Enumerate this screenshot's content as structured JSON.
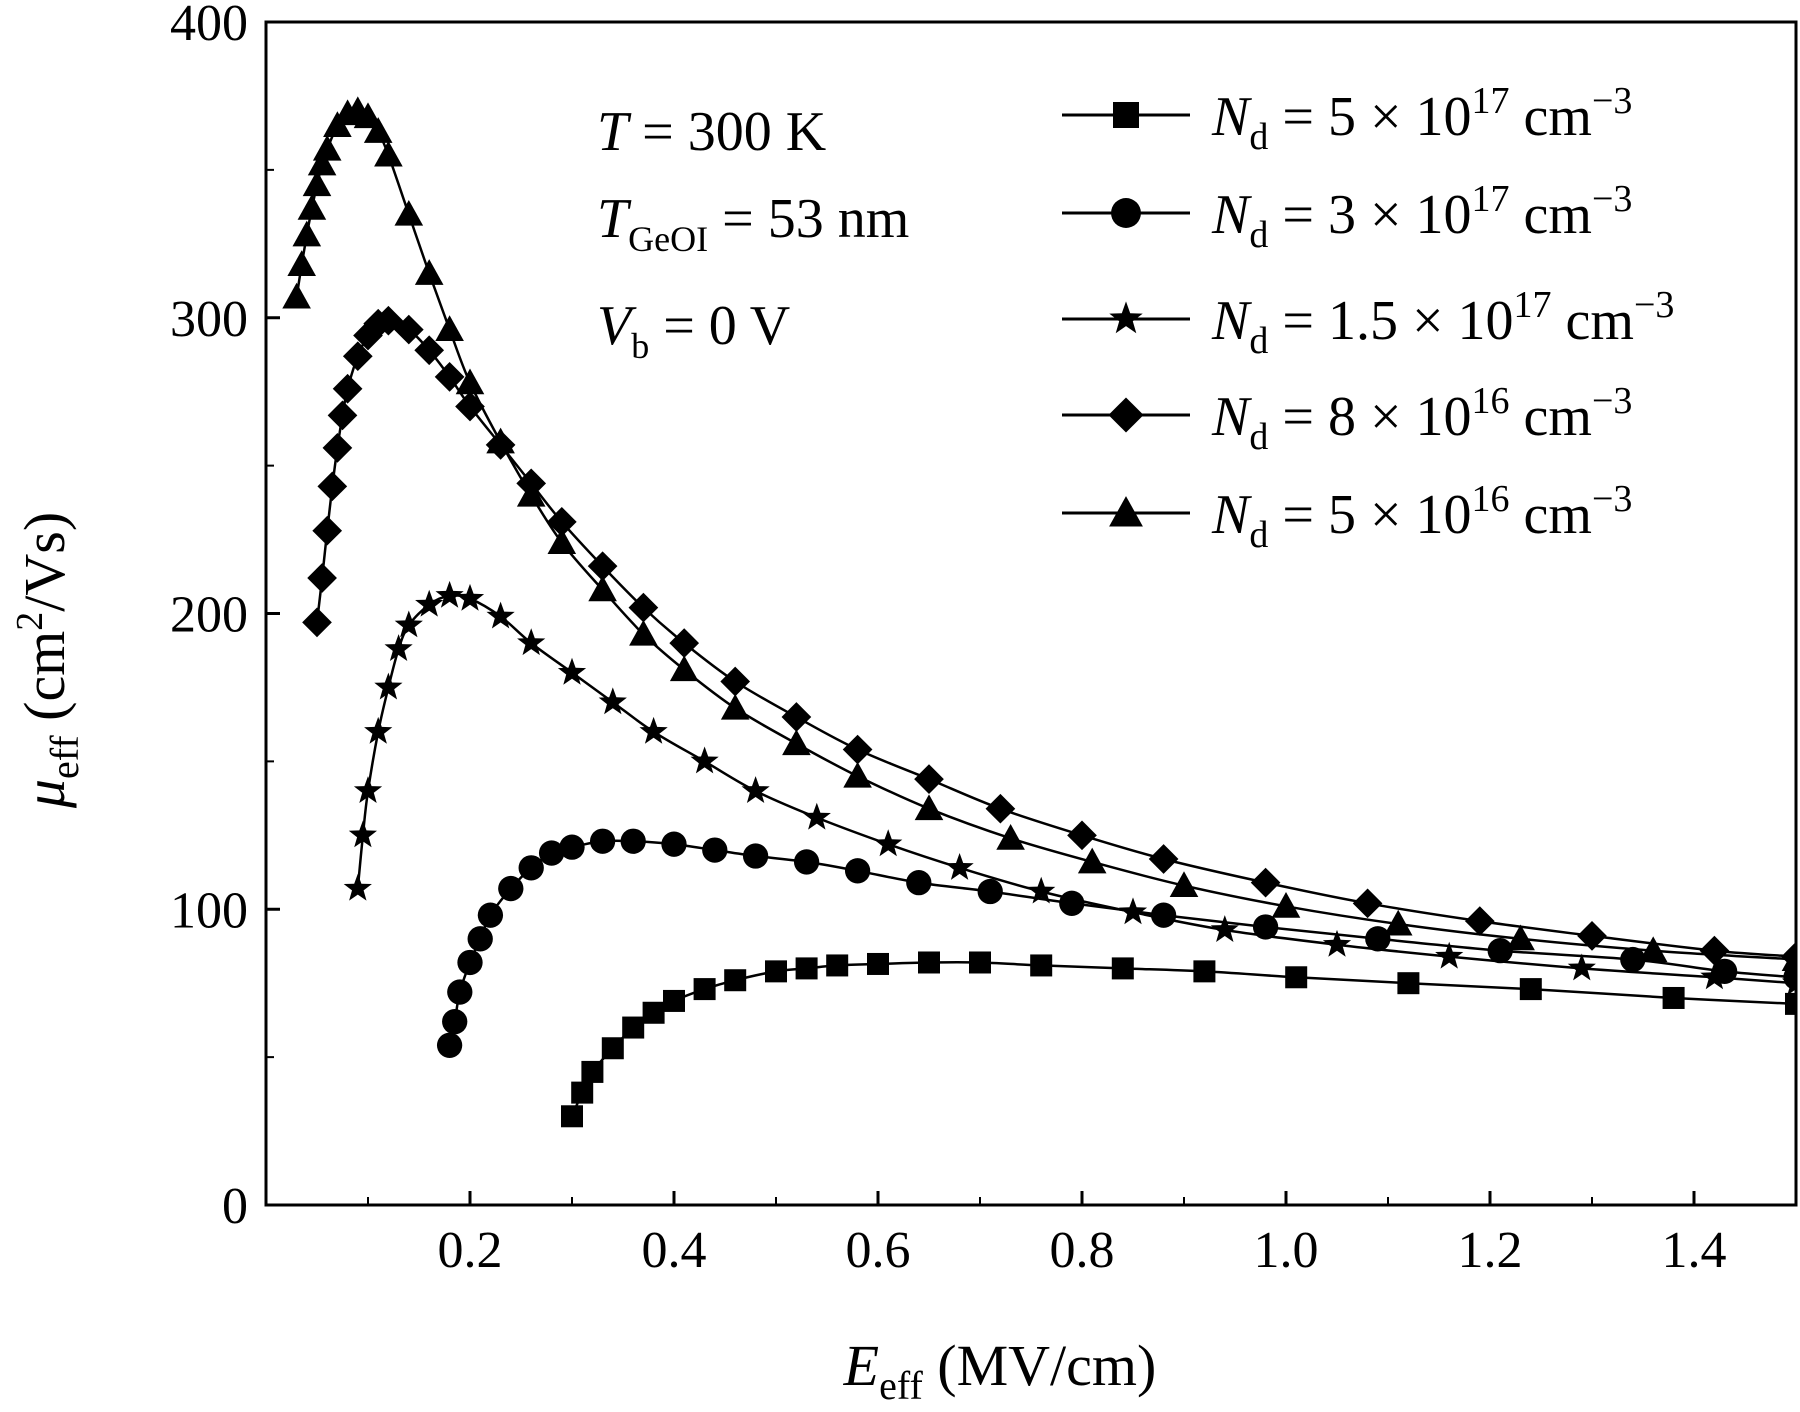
{
  "chart_data": {
    "type": "line",
    "xlabel": {
      "symbol": "E",
      "sub": "eff",
      "unit": " (MV/cm)"
    },
    "ylabel": {
      "symbol": "μ",
      "sub": "eff",
      "unit_pre": " (cm",
      "unit_sup": "2",
      "unit_post": "/Vs)"
    },
    "xlim": [
      0.0,
      1.5
    ],
    "ylim": [
      0,
      400
    ],
    "xticks": [
      0.2,
      0.4,
      0.6,
      0.8,
      1.0,
      1.2,
      1.4
    ],
    "xtick_labels": [
      "0.2",
      "0.4",
      "0.6",
      "0.8",
      "1.0",
      "1.2",
      "1.4"
    ],
    "yticks": [
      0,
      100,
      200,
      300,
      400
    ],
    "ytick_labels": [
      "0",
      "100",
      "200",
      "300",
      "400"
    ],
    "y_minor_ticks": [
      50,
      150,
      250,
      350
    ],
    "grid": false,
    "legend_position": "top-right",
    "annotations": [
      {
        "symbol": "T",
        "sub": "",
        "text": " = 300 K"
      },
      {
        "symbol": "T",
        "sub": "GeOI",
        "text": " = 53 nm"
      },
      {
        "symbol": "V",
        "sub": "b",
        "text": " = 0 V"
      }
    ],
    "series": [
      {
        "name": "N_d = 5 × 10^17 cm^-3",
        "legend": {
          "symbol": "N",
          "sub": "d",
          "pre": " = 5 × 10",
          "sup": "17",
          "post": " cm",
          "sup2": "−3"
        },
        "marker": "square",
        "x": [
          0.3,
          0.31,
          0.32,
          0.34,
          0.36,
          0.38,
          0.4,
          0.43,
          0.46,
          0.5,
          0.53,
          0.56,
          0.6,
          0.65,
          0.7,
          0.76,
          0.84,
          0.92,
          1.01,
          1.12,
          1.24,
          1.38,
          1.5
        ],
        "y": [
          30,
          38,
          45,
          53,
          60,
          65,
          69,
          73,
          76,
          79,
          80,
          81,
          81.5,
          82,
          82,
          81,
          80,
          79,
          77,
          75,
          73,
          70,
          68
        ]
      },
      {
        "name": "N_d = 3 × 10^17 cm^-3",
        "legend": {
          "symbol": "N",
          "sub": "d",
          "pre": " = 3 × 10",
          "sup": "17",
          "post": " cm",
          "sup2": "−3"
        },
        "marker": "circle",
        "x": [
          0.18,
          0.185,
          0.19,
          0.2,
          0.21,
          0.22,
          0.24,
          0.26,
          0.28,
          0.3,
          0.33,
          0.36,
          0.4,
          0.44,
          0.48,
          0.53,
          0.58,
          0.64,
          0.71,
          0.79,
          0.88,
          0.98,
          1.09,
          1.21,
          1.34,
          1.43,
          1.5
        ],
        "y": [
          54,
          62,
          72,
          82,
          90,
          98,
          107,
          114,
          119,
          121,
          123,
          123,
          122,
          120,
          118,
          116,
          113,
          109,
          106,
          102,
          98,
          94,
          90,
          86,
          83,
          79,
          77
        ]
      },
      {
        "name": "N_d = 1.5 × 10^17 cm^-3",
        "legend": {
          "symbol": "N",
          "sub": "d",
          "pre": " = 1.5 × 10",
          "sup": "17",
          "post": " cm",
          "sup2": "−3"
        },
        "marker": "star",
        "x": [
          0.09,
          0.095,
          0.1,
          0.11,
          0.12,
          0.13,
          0.14,
          0.16,
          0.18,
          0.2,
          0.23,
          0.26,
          0.3,
          0.34,
          0.38,
          0.43,
          0.48,
          0.54,
          0.61,
          0.68,
          0.76,
          0.85,
          0.94,
          1.05,
          1.16,
          1.29,
          1.42,
          1.5
        ],
        "y": [
          107,
          125,
          140,
          160,
          175,
          188,
          196,
          203,
          206,
          205,
          199,
          190,
          180,
          170,
          160,
          150,
          140,
          131,
          122,
          114,
          106,
          99,
          93,
          88,
          84,
          80,
          77,
          75
        ]
      },
      {
        "name": "N_d = 8 × 10^16 cm^-3",
        "legend": {
          "symbol": "N",
          "sub": "d",
          "pre": " = 8 × 10",
          "sup": "16",
          "post": " cm",
          "sup2": "−3"
        },
        "marker": "diamond",
        "x": [
          0.05,
          0.055,
          0.06,
          0.065,
          0.07,
          0.075,
          0.08,
          0.09,
          0.1,
          0.11,
          0.12,
          0.14,
          0.16,
          0.18,
          0.2,
          0.23,
          0.26,
          0.29,
          0.33,
          0.37,
          0.41,
          0.46,
          0.52,
          0.58,
          0.65,
          0.72,
          0.8,
          0.88,
          0.98,
          1.08,
          1.19,
          1.3,
          1.42,
          1.5
        ],
        "y": [
          197,
          212,
          228,
          243,
          256,
          267,
          276,
          287,
          294,
          298,
          299,
          296,
          289,
          280,
          270,
          257,
          244,
          231,
          216,
          202,
          190,
          177,
          165,
          154,
          144,
          134,
          125,
          117,
          109,
          102,
          96,
          91,
          86,
          84
        ]
      },
      {
        "name": "N_d = 5 × 10^16 cm^-3",
        "legend": {
          "symbol": "N",
          "sub": "d",
          "pre": " = 5 × 10",
          "sup": "16",
          "post": " cm",
          "sup2": "−3"
        },
        "marker": "triangle",
        "x": [
          0.03,
          0.035,
          0.04,
          0.045,
          0.05,
          0.055,
          0.06,
          0.07,
          0.08,
          0.09,
          0.1,
          0.11,
          0.12,
          0.14,
          0.16,
          0.18,
          0.2,
          0.23,
          0.26,
          0.29,
          0.33,
          0.37,
          0.41,
          0.46,
          0.52,
          0.58,
          0.65,
          0.73,
          0.81,
          0.9,
          1.0,
          1.11,
          1.23,
          1.36,
          1.5
        ],
        "y": [
          307,
          318,
          328,
          337,
          345,
          352,
          357,
          365,
          369,
          370,
          368,
          363,
          355,
          335,
          315,
          296,
          278,
          258,
          240,
          224,
          208,
          193,
          181,
          168,
          156,
          145,
          134,
          124,
          116,
          108,
          101,
          95,
          90,
          86,
          83
        ]
      }
    ]
  }
}
